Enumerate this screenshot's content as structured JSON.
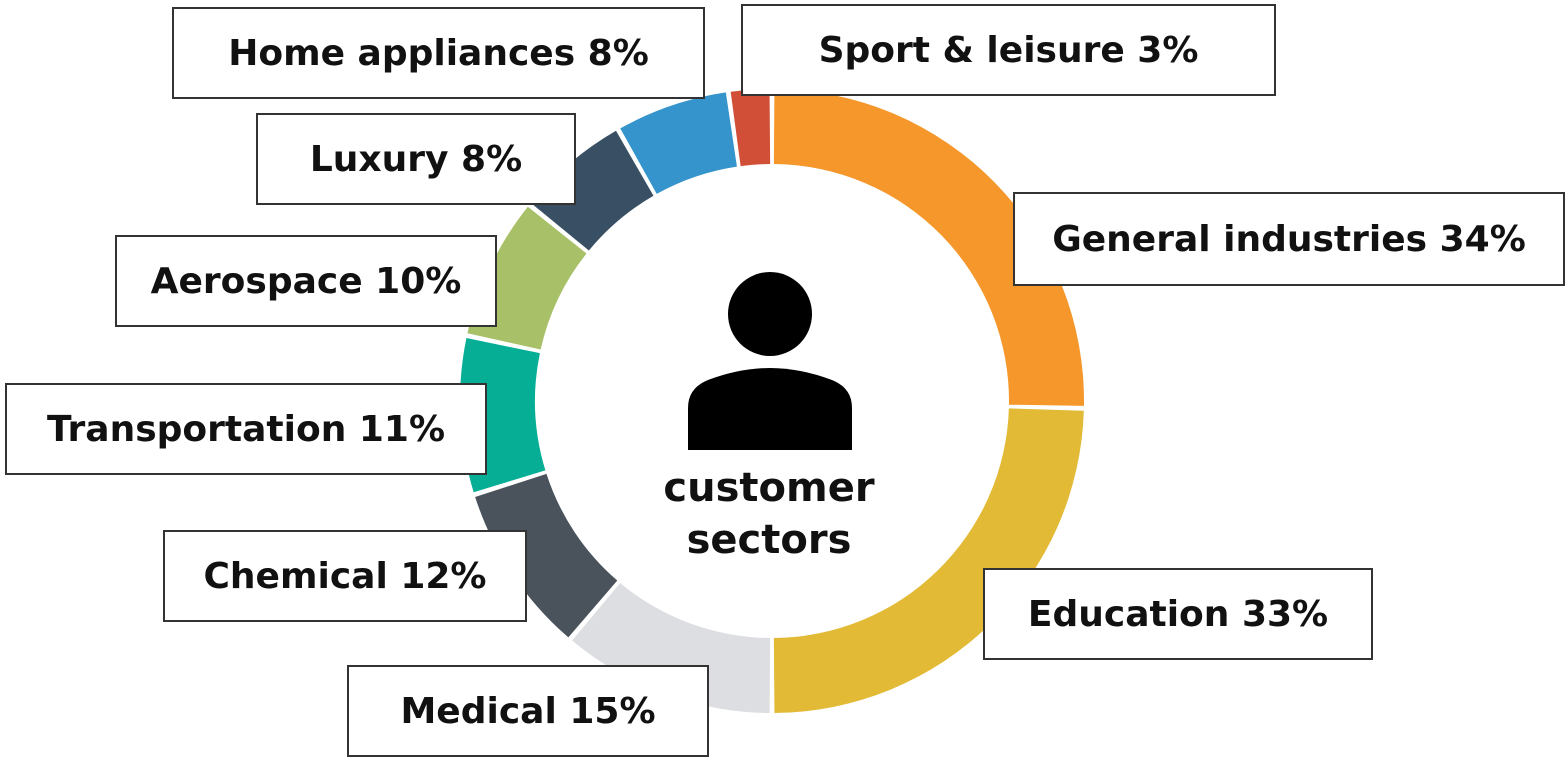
{
  "chart_data": {
    "type": "pie",
    "style": "donut",
    "center_label": [
      "customer",
      "sectors"
    ],
    "center_icon": "person-icon",
    "legend": "none",
    "slices": [
      {
        "label": "General industries 34%",
        "value": 34,
        "color": "#F5972A"
      },
      {
        "label": "Education 33%",
        "value": 33,
        "color": "#E2BA35"
      },
      {
        "label": "Medical 15%",
        "value": 15,
        "color": "#DDDEE1"
      },
      {
        "label": "Chemical 12%",
        "value": 12,
        "color": "#4A535C"
      },
      {
        "label": "Transportation 11%",
        "value": 11,
        "color": "#06AE95"
      },
      {
        "label": "Aerospace 10%",
        "value": 10,
        "color": "#A8C168"
      },
      {
        "label": "Luxury 8%",
        "value": 8,
        "color": "#384F64"
      },
      {
        "label": "Home appliances 8%",
        "value": 8,
        "color": "#3494CB"
      },
      {
        "label": "Sport & leisure 3%",
        "value": 3,
        "color": "#D24F37"
      }
    ]
  }
}
